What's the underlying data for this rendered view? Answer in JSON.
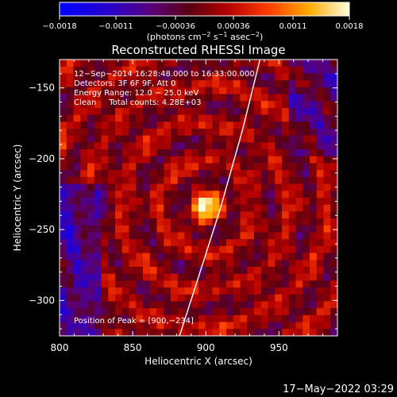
{
  "chart_data": {
    "type": "heatmap",
    "title": "Reconstructed RHESSI Image",
    "xlabel": "Heliocentric X (arcsec)",
    "ylabel": "Heliocentric Y (arcsec)",
    "xlim": [
      800,
      990
    ],
    "ylim": [
      -325,
      -130
    ],
    "x_ticks": [
      800,
      850,
      900,
      950
    ],
    "x_tick_labels": [
      "800",
      "850",
      "900",
      "950"
    ],
    "y_ticks": [
      -150,
      -200,
      -250,
      -300
    ],
    "y_tick_labels": [
      "−150",
      "−200",
      "−250",
      "−300"
    ],
    "colorbar": {
      "range": [
        -0.0018,
        0.0018
      ],
      "ticks": [
        -0.0018,
        -0.0011,
        -0.00036,
        0.00036,
        0.0011,
        0.0018
      ],
      "tick_labels": [
        "−0.0018",
        "−0.0011",
        "−0.00036",
        "0.00036",
        "0.0011",
        "0.0018"
      ],
      "unit_main": "(photons cm",
      "unit_exp1": "−2",
      "unit_mid1": " s",
      "unit_exp2": "−1",
      "unit_mid2": " asec",
      "unit_exp3": "−2",
      "unit_end": ")"
    },
    "annotations": [
      "12−Sep−2014 16:28:48.000 to 16:33:00.000",
      "Detectors: 3F 6F 9F, Att 0",
      "Energy Range: 12.0 − 25.0 keV",
      "Clean     Total counts: 4.28E+03"
    ],
    "peak_label": "Position of Peak = [900,−234]",
    "peak": [
      900,
      -234
    ],
    "peak_value": 0.0018,
    "limb_points": [
      [
        937,
        -130
      ],
      [
        925,
        -180
      ],
      [
        910,
        -235
      ],
      [
        893,
        -290
      ],
      [
        882,
        -325
      ]
    ]
  },
  "footer": {
    "timestamp": "17−May−2022 03:29"
  }
}
